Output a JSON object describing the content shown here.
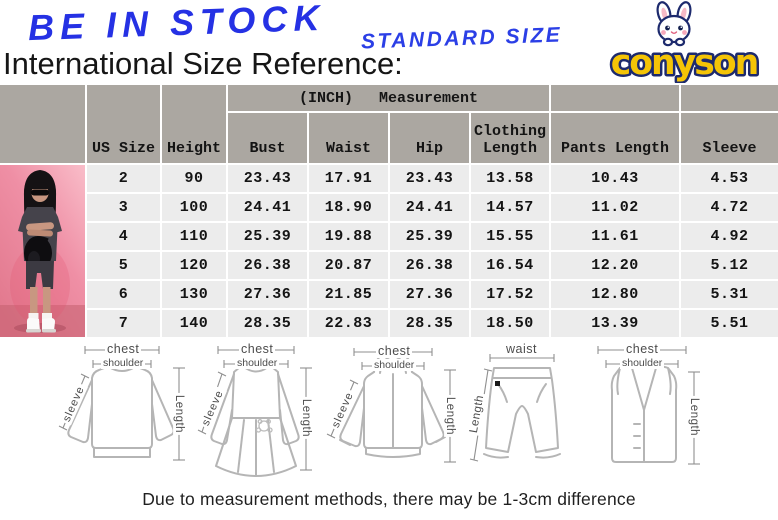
{
  "banner": {
    "stock_text": "BE IN STOCK",
    "standard_size_text": "STANDARD SIZE",
    "title": "International Size Reference:"
  },
  "logo": {
    "brand": "conyson",
    "mascot": "rabbit-icon",
    "brand_color": "#f4c406",
    "outline_color": "#1d2a6d"
  },
  "size_table": {
    "unit_label": "(INCH)",
    "measurement_label": "Measurement",
    "columns": [
      "US Size",
      "Height",
      "Bust",
      "Waist",
      "Hip",
      "Clothing Length",
      "Pants Length",
      "Sleeve"
    ],
    "rows": [
      [
        "2",
        "90",
        "23.43",
        "17.91",
        "23.43",
        "13.58",
        "10.43",
        "4.53"
      ],
      [
        "3",
        "100",
        "24.41",
        "18.90",
        "24.41",
        "14.57",
        "11.02",
        "4.72"
      ],
      [
        "4",
        "110",
        "25.39",
        "19.88",
        "25.39",
        "15.55",
        "11.61",
        "4.92"
      ],
      [
        "5",
        "120",
        "26.38",
        "20.87",
        "26.38",
        "16.54",
        "12.20",
        "5.12"
      ],
      [
        "6",
        "130",
        "27.36",
        "21.85",
        "27.36",
        "17.52",
        "12.80",
        "5.31"
      ],
      [
        "7",
        "140",
        "28.35",
        "22.83",
        "28.35",
        "18.50",
        "13.39",
        "5.51"
      ]
    ],
    "colors": {
      "header_bg": "#aba7a1",
      "row_bg": "#ececec",
      "divider": "#ffffff"
    }
  },
  "diagrams": [
    {
      "type": "sweatshirt",
      "chest": "chest",
      "shoulder": "shoulder",
      "sleeve": "sleeve",
      "length": "Length"
    },
    {
      "type": "dress",
      "chest": "chest",
      "shoulder": "shoulder",
      "sleeve": "sleeve",
      "length": "Length"
    },
    {
      "type": "hoodie",
      "chest": "chest",
      "shoulder": "shoulder",
      "sleeve": "sleeve",
      "length": "Length"
    },
    {
      "type": "pants",
      "waist": "waist",
      "length": "Length"
    },
    {
      "type": "vest",
      "chest": "chest",
      "shoulder": "shoulder",
      "length": "Length"
    }
  ],
  "footer": {
    "note": "Due to measurement methods, there may be 1-3cm difference"
  }
}
